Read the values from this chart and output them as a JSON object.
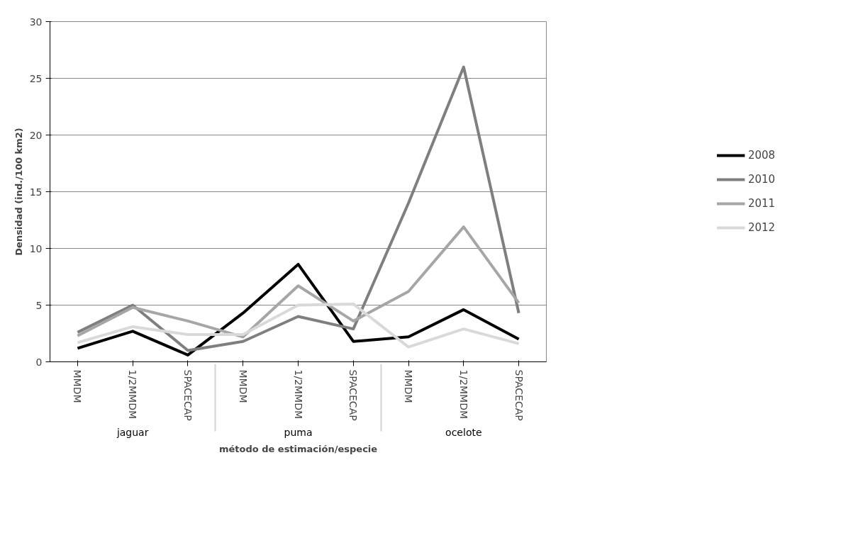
{
  "chart_data": {
    "type": "line",
    "categories": [
      "MMDM",
      "1/2MMDM",
      "SPACECAP",
      "MMDM",
      "1/2MMDM",
      "SPACECAP",
      "MMDM",
      "1/2MMDM",
      "SPACECAP"
    ],
    "annotations": [
      "jaguar",
      "puma",
      "ocelote"
    ],
    "xlabel": "método de estimación/especie",
    "ylabel": "Densidad (ind./100 km2)",
    "ylim": [
      0,
      30
    ],
    "yticks": [
      0,
      5,
      10,
      15,
      20,
      25,
      30
    ],
    "grid": "y",
    "legend": "right",
    "marker": "none",
    "line_style": "solid",
    "series": [
      {
        "name": "2008",
        "color": "#000000",
        "values": [
          1.2,
          2.7,
          0.6,
          4.3,
          8.6,
          1.8,
          2.2,
          4.6,
          2.0
        ]
      },
      {
        "name": "2010",
        "color": "#7f7f7f",
        "values": [
          2.6,
          5.0,
          1.0,
          1.8,
          4.0,
          2.9,
          14.0,
          26.0,
          4.3
        ]
      },
      {
        "name": "2011",
        "color": "#a6a6a6",
        "values": [
          2.3,
          4.8,
          3.6,
          2.2,
          6.7,
          3.6,
          6.2,
          11.9,
          5.2
        ]
      },
      {
        "name": "2012",
        "color": "#d9d9d9",
        "values": [
          1.7,
          3.1,
          2.4,
          2.4,
          5.0,
          5.1,
          1.3,
          2.9,
          1.6
        ]
      }
    ]
  }
}
